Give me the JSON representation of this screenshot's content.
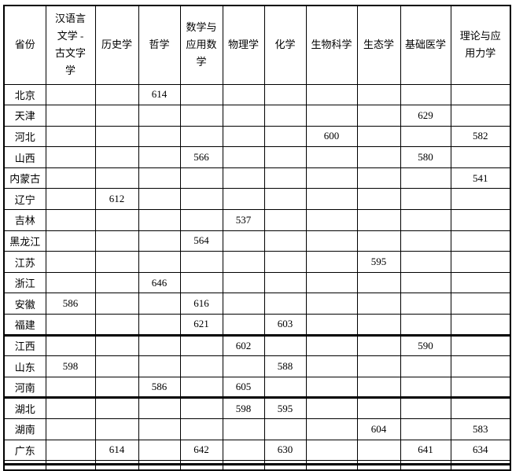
{
  "page": {
    "background_color": "#ffffff",
    "border_color": "#000000",
    "thick_divider_after_rows": [
      "福建",
      "河南"
    ]
  },
  "table": {
    "header": {
      "province": "省份",
      "subjects": [
        "汉语言\n文学 -\n古文字\n学",
        "历史学",
        "哲学",
        "数学与\n应用数\n学",
        "物理学",
        "化学",
        "生物科学",
        "生态学",
        "基础医学",
        "理论与应\n用力学"
      ]
    },
    "rows": [
      {
        "province": "北京",
        "scores": [
          "",
          "",
          "614",
          "",
          "",
          "",
          "",
          "",
          "",
          ""
        ]
      },
      {
        "province": "天津",
        "scores": [
          "",
          "",
          "",
          "",
          "",
          "",
          "",
          "",
          "629",
          ""
        ]
      },
      {
        "province": "河北",
        "scores": [
          "",
          "",
          "",
          "",
          "",
          "",
          "600",
          "",
          "",
          "582"
        ]
      },
      {
        "province": "山西",
        "scores": [
          "",
          "",
          "",
          "566",
          "",
          "",
          "",
          "",
          "580",
          ""
        ]
      },
      {
        "province": "内蒙古",
        "scores": [
          "",
          "",
          "",
          "",
          "",
          "",
          "",
          "",
          "",
          "541"
        ]
      },
      {
        "province": "辽宁",
        "scores": [
          "",
          "612",
          "",
          "",
          "",
          "",
          "",
          "",
          "",
          ""
        ]
      },
      {
        "province": "吉林",
        "scores": [
          "",
          "",
          "",
          "",
          "537",
          "",
          "",
          "",
          "",
          ""
        ]
      },
      {
        "province": "黑龙江",
        "scores": [
          "",
          "",
          "",
          "564",
          "",
          "",
          "",
          "",
          "",
          ""
        ]
      },
      {
        "province": "江苏",
        "scores": [
          "",
          "",
          "",
          "",
          "",
          "",
          "",
          "595",
          "",
          ""
        ]
      },
      {
        "province": "浙江",
        "scores": [
          "",
          "",
          "646",
          "",
          "",
          "",
          "",
          "",
          "",
          ""
        ]
      },
      {
        "province": "安徽",
        "scores": [
          "586",
          "",
          "",
          "616",
          "",
          "",
          "",
          "",
          "",
          ""
        ]
      },
      {
        "province": "福建",
        "scores": [
          "",
          "",
          "",
          "621",
          "",
          "603",
          "",
          "",
          "",
          ""
        ],
        "thick_bottom": true
      },
      {
        "province": "江西",
        "scores": [
          "",
          "",
          "",
          "",
          "602",
          "",
          "",
          "",
          "590",
          ""
        ]
      },
      {
        "province": "山东",
        "scores": [
          "598",
          "",
          "",
          "",
          "",
          "588",
          "",
          "",
          "",
          ""
        ]
      },
      {
        "province": "河南",
        "scores": [
          "",
          "",
          "586",
          "",
          "605",
          "",
          "",
          "",
          "",
          ""
        ],
        "thick_bottom": true
      },
      {
        "province": "湖北",
        "scores": [
          "",
          "",
          "",
          "",
          "598",
          "595",
          "",
          "",
          "",
          ""
        ]
      },
      {
        "province": "湖南",
        "scores": [
          "",
          "",
          "",
          "",
          "",
          "",
          "",
          "604",
          "",
          "583"
        ]
      },
      {
        "province": "广东",
        "scores": [
          "",
          "614",
          "",
          "642",
          "",
          "630",
          "",
          "",
          "641",
          "634"
        ]
      }
    ]
  }
}
